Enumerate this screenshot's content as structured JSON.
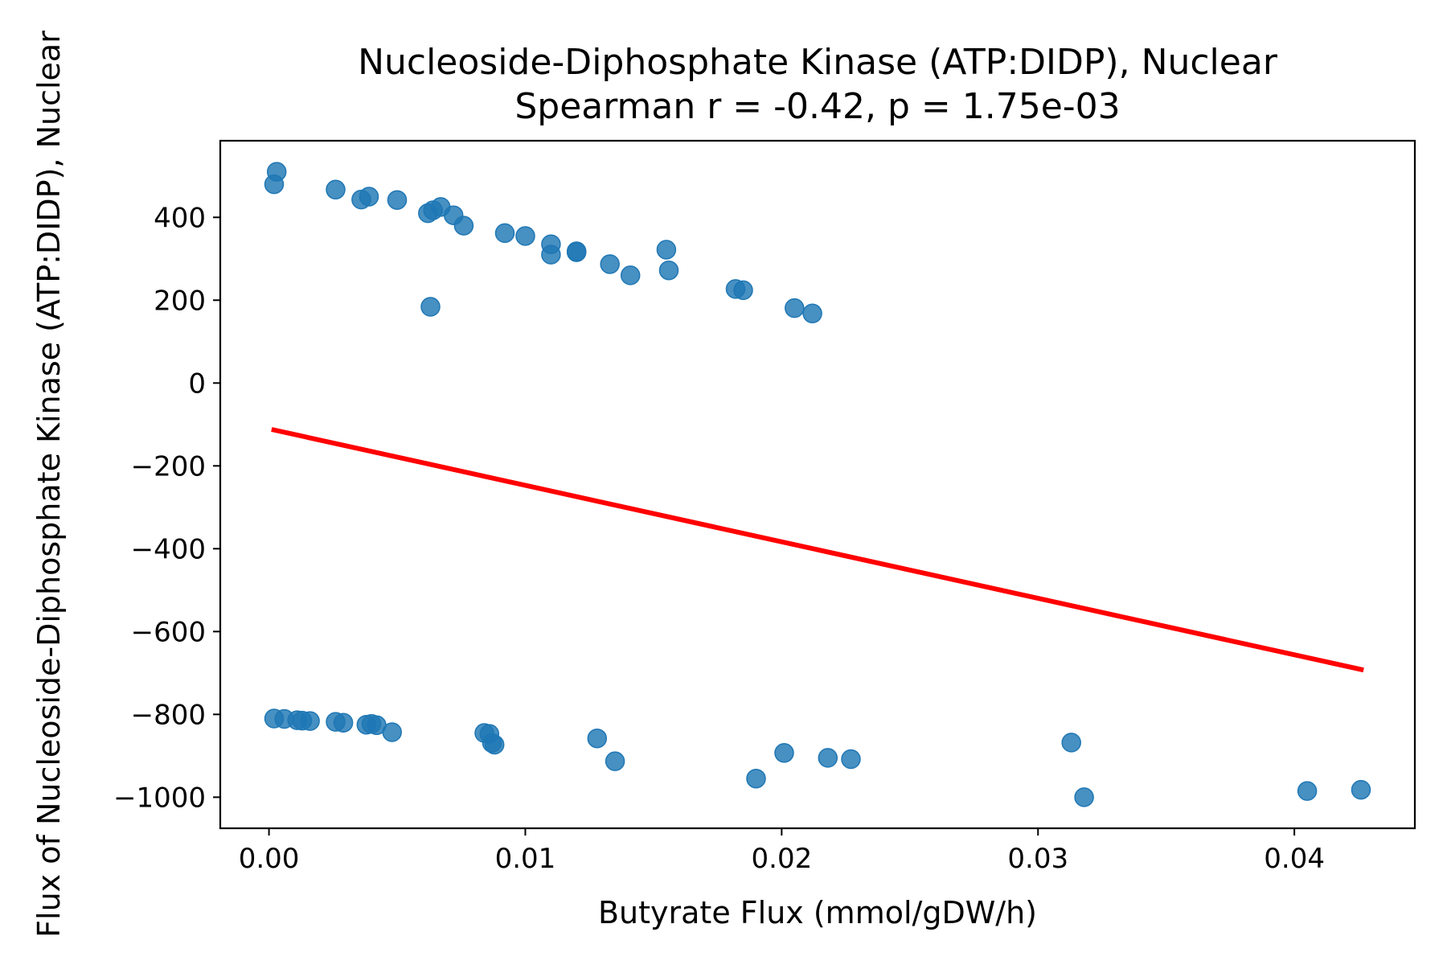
{
  "chart_data": {
    "type": "scatter",
    "title": "Nucleoside-Diphosphate Kinase (ATP:DIDP), Nuclear",
    "subtitle": "Spearman r = -0.42, p = 1.75e-03",
    "xlabel": "Butyrate Flux (mmol/gDW/h)",
    "ylabel": "Flux of Nucleoside-Diphosphate Kinase (ATP:DIDP), Nuclear",
    "xlim": [
      -0.0019,
      0.0447
    ],
    "ylim": [
      -1075,
      585
    ],
    "xticks": [
      0.0,
      0.01,
      0.02,
      0.03,
      0.04
    ],
    "xtick_labels": [
      "0.00",
      "0.01",
      "0.02",
      "0.03",
      "0.04"
    ],
    "yticks": [
      400,
      200,
      0,
      -200,
      -400,
      -600,
      -800,
      -1000
    ],
    "ytick_labels": [
      "400",
      "200",
      "0",
      "−200",
      "−400",
      "−600",
      "−800",
      "−1000"
    ],
    "grid": false,
    "points": [
      {
        "x": 0.0003,
        "y": 510
      },
      {
        "x": 0.0002,
        "y": 480
      },
      {
        "x": 0.0026,
        "y": 467
      },
      {
        "x": 0.0039,
        "y": 450
      },
      {
        "x": 0.0036,
        "y": 443
      },
      {
        "x": 0.005,
        "y": 442
      },
      {
        "x": 0.0067,
        "y": 425
      },
      {
        "x": 0.0064,
        "y": 417
      },
      {
        "x": 0.0062,
        "y": 410
      },
      {
        "x": 0.0072,
        "y": 405
      },
      {
        "x": 0.0076,
        "y": 380
      },
      {
        "x": 0.0092,
        "y": 362
      },
      {
        "x": 0.01,
        "y": 355
      },
      {
        "x": 0.011,
        "y": 335
      },
      {
        "x": 0.0155,
        "y": 322
      },
      {
        "x": 0.012,
        "y": 318
      },
      {
        "x": 0.012,
        "y": 316
      },
      {
        "x": 0.011,
        "y": 310
      },
      {
        "x": 0.0133,
        "y": 287
      },
      {
        "x": 0.0156,
        "y": 272
      },
      {
        "x": 0.0141,
        "y": 260
      },
      {
        "x": 0.0182,
        "y": 227
      },
      {
        "x": 0.0185,
        "y": 224
      },
      {
        "x": 0.0063,
        "y": 184
      },
      {
        "x": 0.0205,
        "y": 181
      },
      {
        "x": 0.0212,
        "y": 168
      },
      {
        "x": 0.0002,
        "y": -810
      },
      {
        "x": 0.0006,
        "y": -811
      },
      {
        "x": 0.0011,
        "y": -814
      },
      {
        "x": 0.0013,
        "y": -815
      },
      {
        "x": 0.0016,
        "y": -816
      },
      {
        "x": 0.0026,
        "y": -818
      },
      {
        "x": 0.0029,
        "y": -820
      },
      {
        "x": 0.0038,
        "y": -825
      },
      {
        "x": 0.004,
        "y": -823
      },
      {
        "x": 0.0042,
        "y": -826
      },
      {
        "x": 0.0048,
        "y": -843
      },
      {
        "x": 0.0084,
        "y": -845
      },
      {
        "x": 0.0086,
        "y": -847
      },
      {
        "x": 0.0087,
        "y": -869
      },
      {
        "x": 0.0088,
        "y": -873
      },
      {
        "x": 0.0128,
        "y": -858
      },
      {
        "x": 0.0135,
        "y": -913
      },
      {
        "x": 0.019,
        "y": -955
      },
      {
        "x": 0.0201,
        "y": -893
      },
      {
        "x": 0.0218,
        "y": -905
      },
      {
        "x": 0.0227,
        "y": -908
      },
      {
        "x": 0.0313,
        "y": -868
      },
      {
        "x": 0.0318,
        "y": -1000
      },
      {
        "x": 0.0405,
        "y": -985
      },
      {
        "x": 0.0426,
        "y": -982
      }
    ],
    "fit_line": {
      "x": [
        0.0001,
        0.0427
      ],
      "y": [
        -112,
        -693
      ]
    },
    "marker_color": "#1f77b4",
    "fit_color": "#ff0000"
  }
}
